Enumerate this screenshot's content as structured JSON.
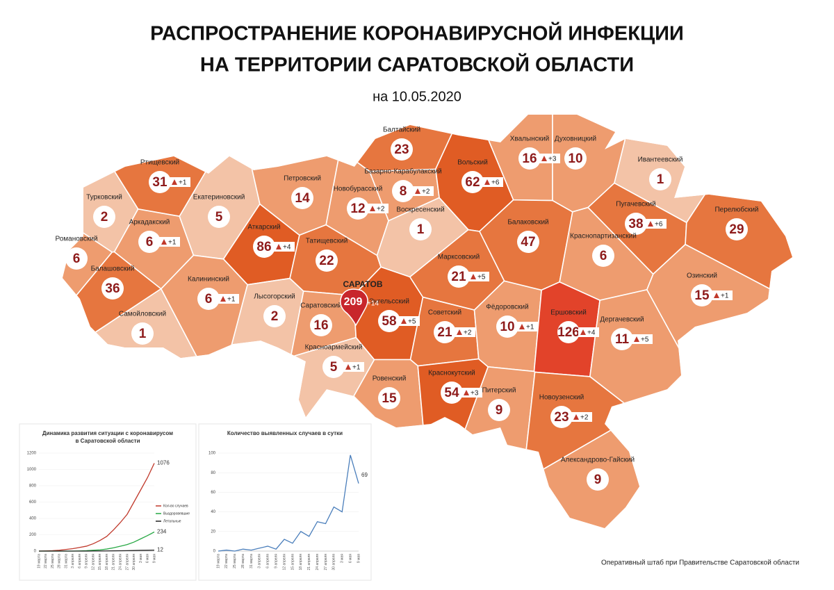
{
  "header": {
    "title_lines": [
      "РАСПРОСТРАНЕНИЕ КОРОНАВИРУСНОЙ ИНФЕКЦИИ",
      "НА ТЕРРИТОРИИ САРАТОВСКОЙ ОБЛАСТИ"
    ],
    "date": "на 10.05.2020"
  },
  "city": {
    "name": "САРАТОВ",
    "cases": 209,
    "delta": "+14"
  },
  "districts": [
    {
      "name": "Ртищевский",
      "cases": 31,
      "delta": "+1"
    },
    {
      "name": "Турковский",
      "cases": 2
    },
    {
      "name": "Аркадакский",
      "cases": 6,
      "delta": "+1"
    },
    {
      "name": "Романовский",
      "cases": 6
    },
    {
      "name": "Балашовский",
      "cases": 36
    },
    {
      "name": "Самойловский",
      "cases": 1
    },
    {
      "name": "Екатериновский",
      "cases": 5
    },
    {
      "name": "Аткарский",
      "cases": 86,
      "delta": "+4"
    },
    {
      "name": "Петровский",
      "cases": 14
    },
    {
      "name": "Калининский",
      "cases": 6,
      "delta": "+1"
    },
    {
      "name": "Лысогорский",
      "cases": 2
    },
    {
      "name": "Татищевский",
      "cases": 22
    },
    {
      "name": "Новобурасский",
      "cases": 12,
      "delta": "+2"
    },
    {
      "name": "Базарно-Карабулакский",
      "cases": 8,
      "delta": "+2"
    },
    {
      "name": "Балтайский",
      "cases": 23
    },
    {
      "name": "Воскресенский",
      "cases": 1
    },
    {
      "name": "Вольский",
      "cases": 62,
      "delta": "+6"
    },
    {
      "name": "Хвалынский",
      "cases": 16,
      "delta": "+3"
    },
    {
      "name": "Духовницкий",
      "cases": 10
    },
    {
      "name": "Ивантеевский",
      "cases": 1
    },
    {
      "name": "Саратовский",
      "cases": 16
    },
    {
      "name": "Красноармейский",
      "cases": 5,
      "delta": "+1"
    },
    {
      "name": "Энгельсский",
      "cases": 58,
      "delta": "+5"
    },
    {
      "name": "Марксовский",
      "cases": 21,
      "delta": "+5"
    },
    {
      "name": "Советский",
      "cases": 21,
      "delta": "+2"
    },
    {
      "name": "Ровенский",
      "cases": 15
    },
    {
      "name": "Краснокутский",
      "cases": 54,
      "delta": "+3"
    },
    {
      "name": "Фёдоровский",
      "cases": 10,
      "delta": "+1"
    },
    {
      "name": "Балаковский",
      "cases": 47
    },
    {
      "name": "Пугачевский",
      "cases": 38,
      "delta": "+6"
    },
    {
      "name": "Перелюбский",
      "cases": 29
    },
    {
      "name": "Краснопартизанский",
      "cases": 6
    },
    {
      "name": "Ершовский",
      "cases": 126,
      "delta": "+4"
    },
    {
      "name": "Озинский",
      "cases": 15,
      "delta": "+1"
    },
    {
      "name": "Дергачевский",
      "cases": 11,
      "delta": "+5"
    },
    {
      "name": "Питерский",
      "cases": 9
    },
    {
      "name": "Новоузенский",
      "cases": 23,
      "delta": "+2"
    },
    {
      "name": "Александрово-Гайский",
      "cases": 9
    }
  ],
  "chart_data": [
    {
      "type": "line",
      "title": [
        "Динамика развития ситуации с коронавирусом",
        "в Саратовской области"
      ],
      "categories": [
        "19 марта",
        "22 марта",
        "25 марта",
        "28 марта",
        "31 марта",
        "3 апреля",
        "6 апреля",
        "9 апреля",
        "12 апреля",
        "15 апреля",
        "18 апреля",
        "21 апреля",
        "24 апреля",
        "27 апреля",
        "30 апреля",
        "3 мая",
        "6 мая",
        "9 мая"
      ],
      "ylim": [
        0,
        1200
      ],
      "yticks": [
        0,
        200,
        400,
        600,
        800,
        1000,
        1200
      ],
      "series": [
        {
          "name": "Кол-во случаев",
          "color": "#c0392b",
          "values": [
            0,
            2,
            5,
            10,
            20,
            30,
            45,
            60,
            90,
            130,
            180,
            260,
            350,
            450,
            600,
            750,
            900,
            1076
          ]
        },
        {
          "name": "Выздоровевшие",
          "color": "#27a844",
          "values": [
            0,
            0,
            0,
            0,
            0,
            0,
            2,
            5,
            10,
            15,
            25,
            40,
            60,
            80,
            110,
            150,
            190,
            234
          ]
        },
        {
          "name": "Летальные",
          "color": "#222222",
          "values": [
            0,
            0,
            0,
            0,
            0,
            0,
            0,
            0,
            1,
            1,
            2,
            3,
            4,
            5,
            7,
            9,
            10,
            12
          ]
        }
      ]
    },
    {
      "type": "line",
      "title": [
        "Количество выявленных случаев в сутки"
      ],
      "categories": [
        "19 марта",
        "22 марта",
        "25 марта",
        "28 марта",
        "31 марта",
        "3 апреля",
        "6 апреля",
        "9 апреля",
        "12 апреля",
        "15 апреля",
        "18 апреля",
        "21 апреля",
        "24 апреля",
        "27 апреля",
        "30 апреля",
        "3 мая",
        "6 мая",
        "9 мая"
      ],
      "ylim": [
        0,
        100
      ],
      "yticks": [
        0,
        20,
        40,
        60,
        80,
        100
      ],
      "series": [
        {
          "color": "#4a7ebb",
          "values": [
            0,
            1,
            0,
            2,
            1,
            3,
            5,
            2,
            12,
            8,
            20,
            15,
            30,
            28,
            45,
            40,
            98,
            69
          ]
        }
      ]
    }
  ],
  "footer": "Оперативный штаб при Правительстве Саратовской области"
}
